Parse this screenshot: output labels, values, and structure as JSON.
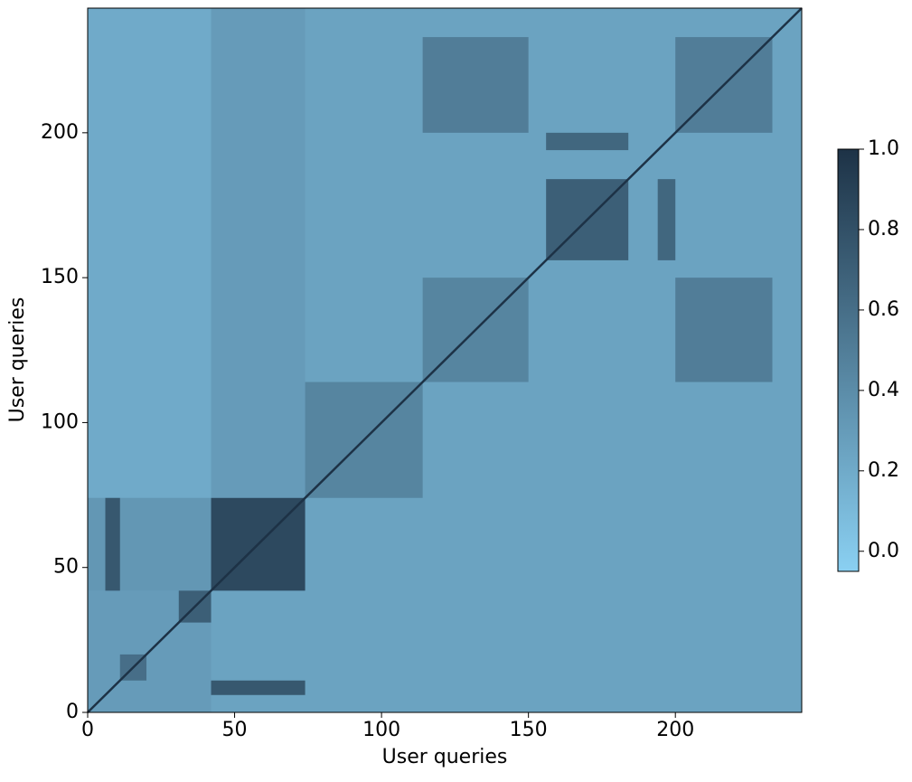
{
  "chart_data": {
    "type": "heatmap",
    "xlabel": "User queries",
    "ylabel": "User queries",
    "xlim": [
      0,
      243
    ],
    "ylim": [
      0,
      243
    ],
    "xticks": [
      0,
      50,
      100,
      150,
      200
    ],
    "yticks": [
      0,
      50,
      100,
      150,
      200
    ],
    "cmap": [
      "#8ad0f2",
      "#1d3246"
    ],
    "clim": [
      -0.05,
      1.0
    ],
    "cticks": [
      {
        "value": 0,
        "label": "0.0"
      },
      0.2,
      0.4,
      0.6,
      0.8,
      {
        "value": 1,
        "label": "1.0"
      }
    ],
    "blocks": [
      {
        "x": [
          0,
          243
        ],
        "y": [
          0,
          243
        ],
        "value": 0.25
      },
      {
        "x": [
          0,
          42
        ],
        "y": [
          74,
          243
        ],
        "value": 0.2
      },
      {
        "x": [
          42,
          74
        ],
        "y": [
          74,
          243
        ],
        "value": 0.3
      },
      {
        "x": [
          0,
          42
        ],
        "y": [
          0,
          42
        ],
        "value": 0.3
      },
      {
        "x": [
          0,
          42
        ],
        "y": [
          42,
          74
        ],
        "value": 0.33
      },
      {
        "x": [
          6,
          11
        ],
        "y": [
          42,
          74
        ],
        "value": 0.75
      },
      {
        "x": [
          42,
          74
        ],
        "y": [
          6,
          11
        ],
        "value": 0.75
      },
      {
        "x": [
          31,
          42
        ],
        "y": [
          31,
          42
        ],
        "value": 0.7
      },
      {
        "x": [
          11,
          20
        ],
        "y": [
          11,
          20
        ],
        "value": 0.6
      },
      {
        "x": [
          42,
          74
        ],
        "y": [
          42,
          74
        ],
        "value": 0.85
      },
      {
        "x": [
          74,
          114
        ],
        "y": [
          74,
          114
        ],
        "value": 0.45
      },
      {
        "x": [
          114,
          150
        ],
        "y": [
          114,
          150
        ],
        "value": 0.45
      },
      {
        "x": [
          114,
          150
        ],
        "y": [
          200,
          233
        ],
        "value": 0.5
      },
      {
        "x": [
          200,
          233
        ],
        "y": [
          114,
          150
        ],
        "value": 0.5
      },
      {
        "x": [
          200,
          233
        ],
        "y": [
          200,
          233
        ],
        "value": 0.5
      },
      {
        "x": [
          156,
          184
        ],
        "y": [
          156,
          184
        ],
        "value": 0.7
      },
      {
        "x": [
          156,
          184
        ],
        "y": [
          194,
          200
        ],
        "value": 0.65
      },
      {
        "x": [
          194,
          200
        ],
        "y": [
          156,
          184
        ],
        "value": 0.65
      }
    ],
    "diagonal": 1
  }
}
